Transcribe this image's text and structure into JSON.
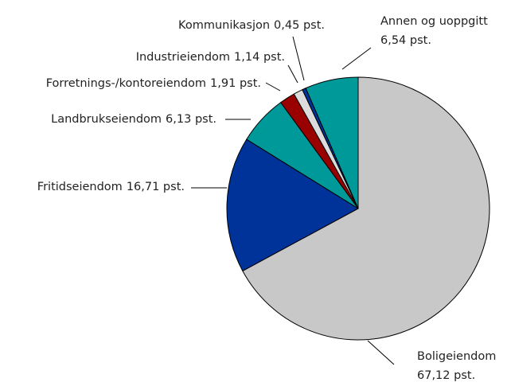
{
  "chart_data": {
    "type": "pie",
    "categories": [
      "Boligeiendom",
      "Fritidseiendom",
      "Landbrukseiendom",
      "Forretnings-/kontoreiendom",
      "Industrieiendom",
      "Kommunikasjon",
      "Annen og uoppgitt"
    ],
    "values": [
      67.12,
      16.71,
      6.13,
      1.91,
      1.14,
      0.45,
      6.54
    ],
    "value_labels": [
      "67,12 pst.",
      "16,71 pst.",
      "6,13 pst.",
      "1,91 pst.",
      "1,14 pst.",
      "0,45 pst.",
      "6,54 pst."
    ],
    "colors": [
      "#c8c8c8",
      "#003399",
      "#009999",
      "#990000",
      "#dcdcdc",
      "#003399",
      "#009999"
    ]
  }
}
